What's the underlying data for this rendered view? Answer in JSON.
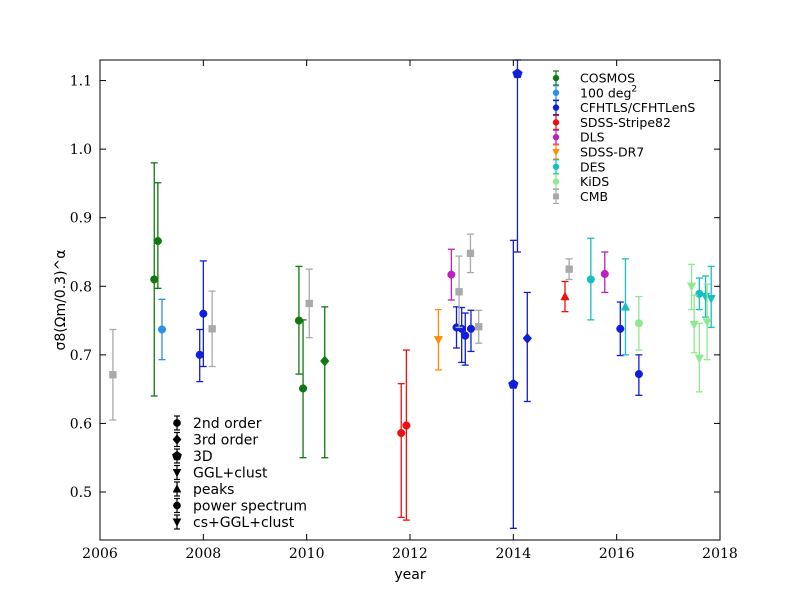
{
  "chart_data": {
    "type": "scatter",
    "xlabel": "year",
    "ylabel": "σ8(Ωm/0.3)^α",
    "xlim": [
      2006,
      2018
    ],
    "ylim": [
      0.43,
      1.13
    ],
    "x_ticks": [
      2006,
      2008,
      2010,
      2012,
      2014,
      2016,
      2018
    ],
    "y_ticks": [
      0.5,
      0.6,
      0.7,
      0.8,
      0.9,
      1.0,
      1.1
    ],
    "x_tick_labels": [
      "2006",
      "2008",
      "2010",
      "2012",
      "2014",
      "2016",
      "2018"
    ],
    "y_tick_labels": [
      "0.5",
      "0.6",
      "0.7",
      "0.8",
      "0.9",
      "1.0",
      "1.1"
    ],
    "legend_placement": "top-right",
    "series": [
      {
        "name": "COSMOS",
        "color": "#117811",
        "points": [
          {
            "x": 2007.05,
            "y": 0.81,
            "lo": 0.64,
            "hi": 0.98,
            "marker": "circle"
          },
          {
            "x": 2007.12,
            "y": 0.866,
            "lo": 0.797,
            "hi": 0.951,
            "marker": "circle"
          },
          {
            "x": 2009.85,
            "y": 0.75,
            "lo": 0.672,
            "hi": 0.829,
            "marker": "circle"
          },
          {
            "x": 2009.93,
            "y": 0.651,
            "lo": 0.55,
            "hi": 0.751,
            "marker": "circle"
          },
          {
            "x": 2010.35,
            "y": 0.691,
            "lo": 0.55,
            "hi": 0.77,
            "marker": "diamond"
          }
        ]
      },
      {
        "name": "100 deg^2",
        "color": "#2b90e8",
        "points": [
          {
            "x": 2007.2,
            "y": 0.737,
            "lo": 0.693,
            "hi": 0.781,
            "marker": "circle"
          }
        ]
      },
      {
        "name": "CFHTLS/CFHTLenS",
        "color": "#0f1ed8",
        "points": [
          {
            "x": 2007.93,
            "y": 0.7,
            "lo": 0.661,
            "hi": 0.737,
            "marker": "circle"
          },
          {
            "x": 2008.0,
            "y": 0.76,
            "lo": 0.683,
            "hi": 0.837,
            "marker": "circle"
          },
          {
            "x": 2012.9,
            "y": 0.74,
            "lo": 0.71,
            "hi": 0.77,
            "marker": "circle"
          },
          {
            "x": 2013.0,
            "y": 0.738,
            "lo": 0.689,
            "hi": 0.769,
            "marker": "circle"
          },
          {
            "x": 2013.07,
            "y": 0.728,
            "lo": 0.685,
            "hi": 0.761,
            "marker": "circle"
          },
          {
            "x": 2013.18,
            "y": 0.738,
            "lo": 0.705,
            "hi": 0.765,
            "marker": "circle"
          },
          {
            "x": 2014.0,
            "y": 0.657,
            "lo": 0.447,
            "hi": 0.867,
            "marker": "pentagon"
          },
          {
            "x": 2014.08,
            "y": 1.11,
            "lo": 0.85,
            "hi": 1.13,
            "marker": "pentagon"
          },
          {
            "x": 2014.27,
            "y": 0.724,
            "lo": 0.632,
            "hi": 0.791,
            "marker": "diamond"
          },
          {
            "x": 2016.07,
            "y": 0.738,
            "lo": 0.699,
            "hi": 0.777,
            "marker": "circle"
          },
          {
            "x": 2016.43,
            "y": 0.672,
            "lo": 0.641,
            "hi": 0.7,
            "marker": "circle"
          }
        ]
      },
      {
        "name": "SDSS-Stripe82",
        "color": "#ef0f0f",
        "points": [
          {
            "x": 2011.83,
            "y": 0.586,
            "lo": 0.463,
            "hi": 0.658,
            "marker": "circle"
          },
          {
            "x": 2011.93,
            "y": 0.597,
            "lo": 0.459,
            "hi": 0.707,
            "marker": "circle"
          },
          {
            "x": 2015.0,
            "y": 0.785,
            "lo": 0.763,
            "hi": 0.807,
            "marker": "triangle-up"
          }
        ]
      },
      {
        "name": "DLS",
        "color": "#bd20bd",
        "points": [
          {
            "x": 2012.8,
            "y": 0.817,
            "lo": 0.78,
            "hi": 0.854,
            "marker": "circle"
          },
          {
            "x": 2015.77,
            "y": 0.818,
            "lo": 0.791,
            "hi": 0.85,
            "marker": "circle"
          }
        ]
      },
      {
        "name": "SDSS-DR7",
        "color": "#ff8c0a",
        "points": [
          {
            "x": 2012.55,
            "y": 0.722,
            "lo": 0.678,
            "hi": 0.766,
            "marker": "triangle-down"
          }
        ]
      },
      {
        "name": "DES",
        "color": "#17bfbf",
        "points": [
          {
            "x": 2015.5,
            "y": 0.81,
            "lo": 0.751,
            "hi": 0.87,
            "marker": "circle"
          },
          {
            "x": 2016.17,
            "y": 0.77,
            "lo": 0.7,
            "hi": 0.84,
            "marker": "triangle-up"
          },
          {
            "x": 2017.6,
            "y": 0.789,
            "lo": 0.766,
            "hi": 0.812,
            "marker": "circle"
          },
          {
            "x": 2017.72,
            "y": 0.785,
            "lo": 0.755,
            "hi": 0.815,
            "marker": "triangle-down"
          },
          {
            "x": 2017.83,
            "y": 0.782,
            "lo": 0.74,
            "hi": 0.829,
            "marker": "triangle-down"
          }
        ]
      },
      {
        "name": "KiDS",
        "color": "#90e890",
        "points": [
          {
            "x": 2016.43,
            "y": 0.746,
            "lo": 0.707,
            "hi": 0.785,
            "marker": "circle"
          },
          {
            "x": 2017.45,
            "y": 0.8,
            "lo": 0.766,
            "hi": 0.832,
            "marker": "triangle-down"
          },
          {
            "x": 2017.5,
            "y": 0.744,
            "lo": 0.703,
            "hi": 0.787,
            "marker": "triangle-down"
          },
          {
            "x": 2017.6,
            "y": 0.695,
            "lo": 0.646,
            "hi": 0.746,
            "marker": "triangle-down"
          },
          {
            "x": 2017.75,
            "y": 0.748,
            "lo": 0.693,
            "hi": 0.803,
            "marker": "triangle-down"
          }
        ]
      },
      {
        "name": "CMB",
        "color": "#a9a9a9",
        "points": [
          {
            "x": 2006.25,
            "y": 0.671,
            "lo": 0.605,
            "hi": 0.737,
            "marker": "square"
          },
          {
            "x": 2008.17,
            "y": 0.738,
            "lo": 0.683,
            "hi": 0.793,
            "marker": "square"
          },
          {
            "x": 2010.05,
            "y": 0.775,
            "lo": 0.725,
            "hi": 0.825,
            "marker": "square"
          },
          {
            "x": 2012.95,
            "y": 0.792,
            "lo": 0.74,
            "hi": 0.844,
            "marker": "square"
          },
          {
            "x": 2013.17,
            "y": 0.848,
            "lo": 0.82,
            "hi": 0.876,
            "marker": "square"
          },
          {
            "x": 2013.33,
            "y": 0.741,
            "lo": 0.717,
            "hi": 0.765,
            "marker": "square"
          },
          {
            "x": 2015.08,
            "y": 0.825,
            "lo": 0.81,
            "hi": 0.84,
            "marker": "square"
          }
        ]
      }
    ],
    "marker_legend": [
      {
        "label": "2nd order",
        "marker": "circle"
      },
      {
        "label": "3rd order",
        "marker": "diamond"
      },
      {
        "label": "3D",
        "marker": "pentagon"
      },
      {
        "label": "GGL+clust",
        "marker": "triangle-down"
      },
      {
        "label": "peaks",
        "marker": "triangle-up"
      },
      {
        "label": "power spectrum",
        "marker": "circle"
      },
      {
        "label": "cs+GGL+clust",
        "marker": "triangle-down"
      }
    ]
  }
}
